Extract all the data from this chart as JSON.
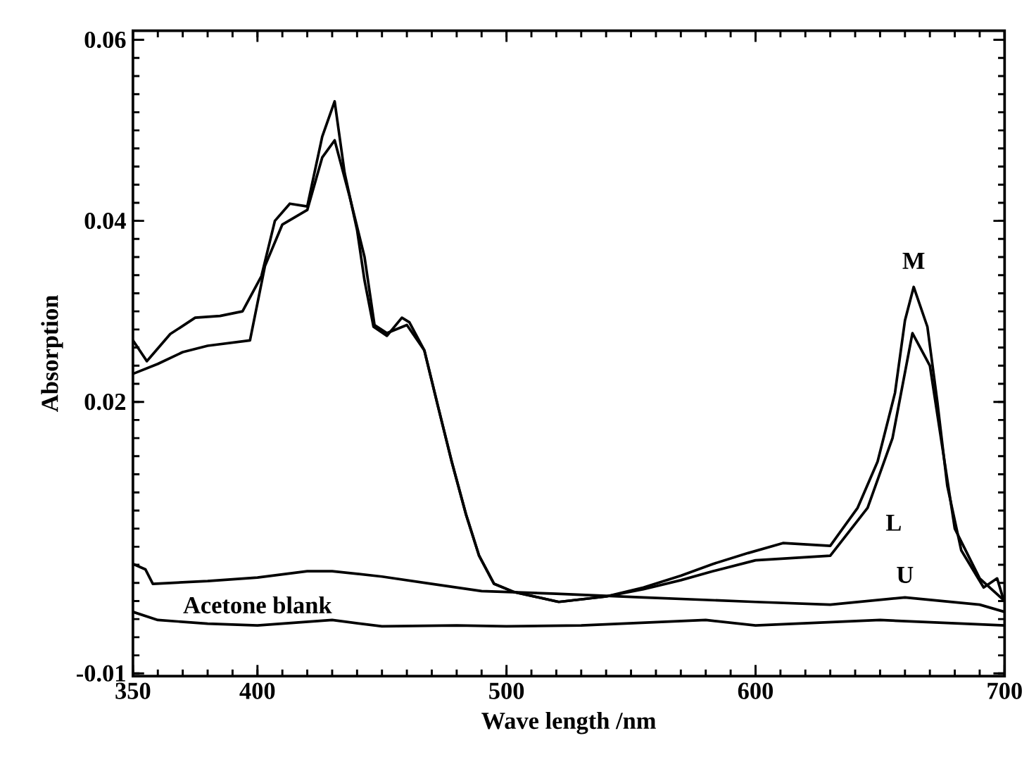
{
  "chart_data": {
    "type": "line",
    "xlabel": "Wave length /nm",
    "ylabel": "Absorption",
    "xlim": [
      350,
      700
    ],
    "xticks": [
      350,
      400,
      500,
      600,
      700
    ],
    "ylim": [
      -0.0103,
      0.061
    ],
    "yticks": [
      -0.01,
      0.02,
      0.04,
      0.06
    ],
    "line_style": "solid",
    "marker": "none",
    "grid": false,
    "series": [
      {
        "name": "M",
        "color": "#000000",
        "x": [
          350,
          355.6,
          365,
          375,
          385,
          394,
          401.6,
          407,
          413,
          420,
          426,
          431,
          435,
          440,
          443,
          446.6,
          452,
          458,
          461,
          467,
          472.5,
          478,
          483.7,
          489,
          495,
          503,
          521,
          540,
          555,
          570,
          583,
          597,
          611,
          630,
          641,
          649,
          656,
          660,
          663.5,
          669,
          673,
          677,
          682.6,
          691.6,
          697,
          699.5
        ],
        "values": [
          0.0268,
          0.0245,
          0.0275,
          0.0293,
          0.0295,
          0.03,
          0.0339,
          0.04,
          0.0419,
          0.0416,
          0.0493,
          0.0532,
          0.0453,
          0.039,
          0.0334,
          0.0283,
          0.0273,
          0.0293,
          0.0288,
          0.0257,
          0.0195,
          0.0134,
          0.0076,
          0.003,
          -0.0001,
          -0.001,
          -0.0021,
          -0.0015,
          -0.0005,
          0.0008,
          0.0021,
          0.0033,
          0.0044,
          0.0041,
          0.0083,
          0.0134,
          0.021,
          0.029,
          0.0327,
          0.0283,
          0.02,
          0.0107,
          0.0036,
          -0.0005,
          0.0005,
          -0.0018
        ]
      },
      {
        "name": "L",
        "color": "#000000",
        "x": [
          350,
          360,
          370,
          380,
          397,
          403,
          410,
          420,
          426,
          431,
          437,
          443,
          447,
          452,
          460,
          467,
          472.5,
          478,
          483.7,
          489,
          495,
          503,
          521,
          540,
          555,
          570,
          583,
          600,
          630,
          645,
          655,
          663,
          670,
          675,
          680,
          690,
          700
        ],
        "values": [
          0.0231,
          0.0242,
          0.0255,
          0.0262,
          0.0268,
          0.035,
          0.0396,
          0.0412,
          0.047,
          0.0489,
          0.0427,
          0.036,
          0.0285,
          0.0276,
          0.0285,
          0.0257,
          0.0195,
          0.0134,
          0.0076,
          0.003,
          -0.0001,
          -0.001,
          -0.0021,
          -0.0015,
          -0.0007,
          0.0003,
          0.0013,
          0.0025,
          0.003,
          0.0083,
          0.016,
          0.0276,
          0.024,
          0.015,
          0.006,
          0.0005,
          -0.002
        ]
      },
      {
        "name": "U",
        "color": "#000000",
        "x": [
          350,
          355,
          358,
          380,
          400,
          420,
          430,
          450,
          470,
          490,
          520,
          555,
          600,
          630,
          660,
          690,
          700
        ],
        "values": [
          0.0021,
          0.0015,
          -0.0001,
          0.0002,
          0.0006,
          0.0013,
          0.0013,
          0.0007,
          -0.0001,
          -0.0009,
          -0.0012,
          -0.0016,
          -0.0021,
          -0.0024,
          -0.0016,
          -0.0024,
          -0.0032
        ]
      },
      {
        "name": "Acetone blank",
        "color": "#000000",
        "x": [
          350,
          360,
          380,
          400,
          430,
          450,
          480,
          500,
          530,
          580,
          600,
          650,
          700
        ],
        "values": [
          -0.0032,
          -0.0041,
          -0.0045,
          -0.0047,
          -0.0041,
          -0.0048,
          -0.0047,
          -0.0048,
          -0.0047,
          -0.0041,
          -0.0047,
          -0.0041,
          -0.0047
        ]
      }
    ]
  }
}
